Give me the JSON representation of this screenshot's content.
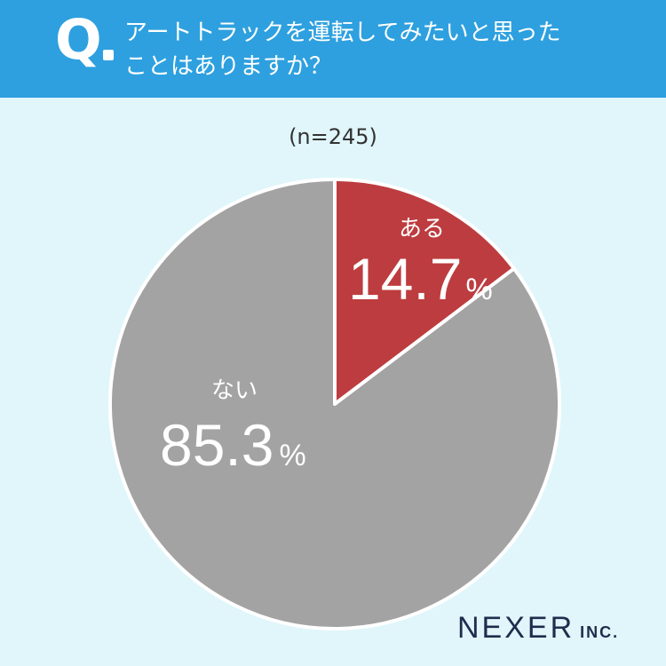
{
  "header": {
    "q_mark": "Q",
    "question_line1": "アートトラックを運転してみたいと思った",
    "question_line2": "ことはありますか？"
  },
  "sample_label": "(n=245)",
  "colors": {
    "header_bg": "#2ea0df",
    "page_bg": "#e0f6fa",
    "yes": "#bd3c3f",
    "no": "#a3a3a3"
  },
  "chart_data": {
    "type": "pie",
    "slices": [
      {
        "label": "ある",
        "value": 14.7,
        "display": "14.7",
        "unit": "%",
        "color": "#bd3c3f"
      },
      {
        "label": "ない",
        "value": 85.3,
        "display": "85.3",
        "unit": "%",
        "color": "#a3a3a3"
      }
    ]
  },
  "brand": {
    "name": "NEXER",
    "suffix": "INC."
  }
}
